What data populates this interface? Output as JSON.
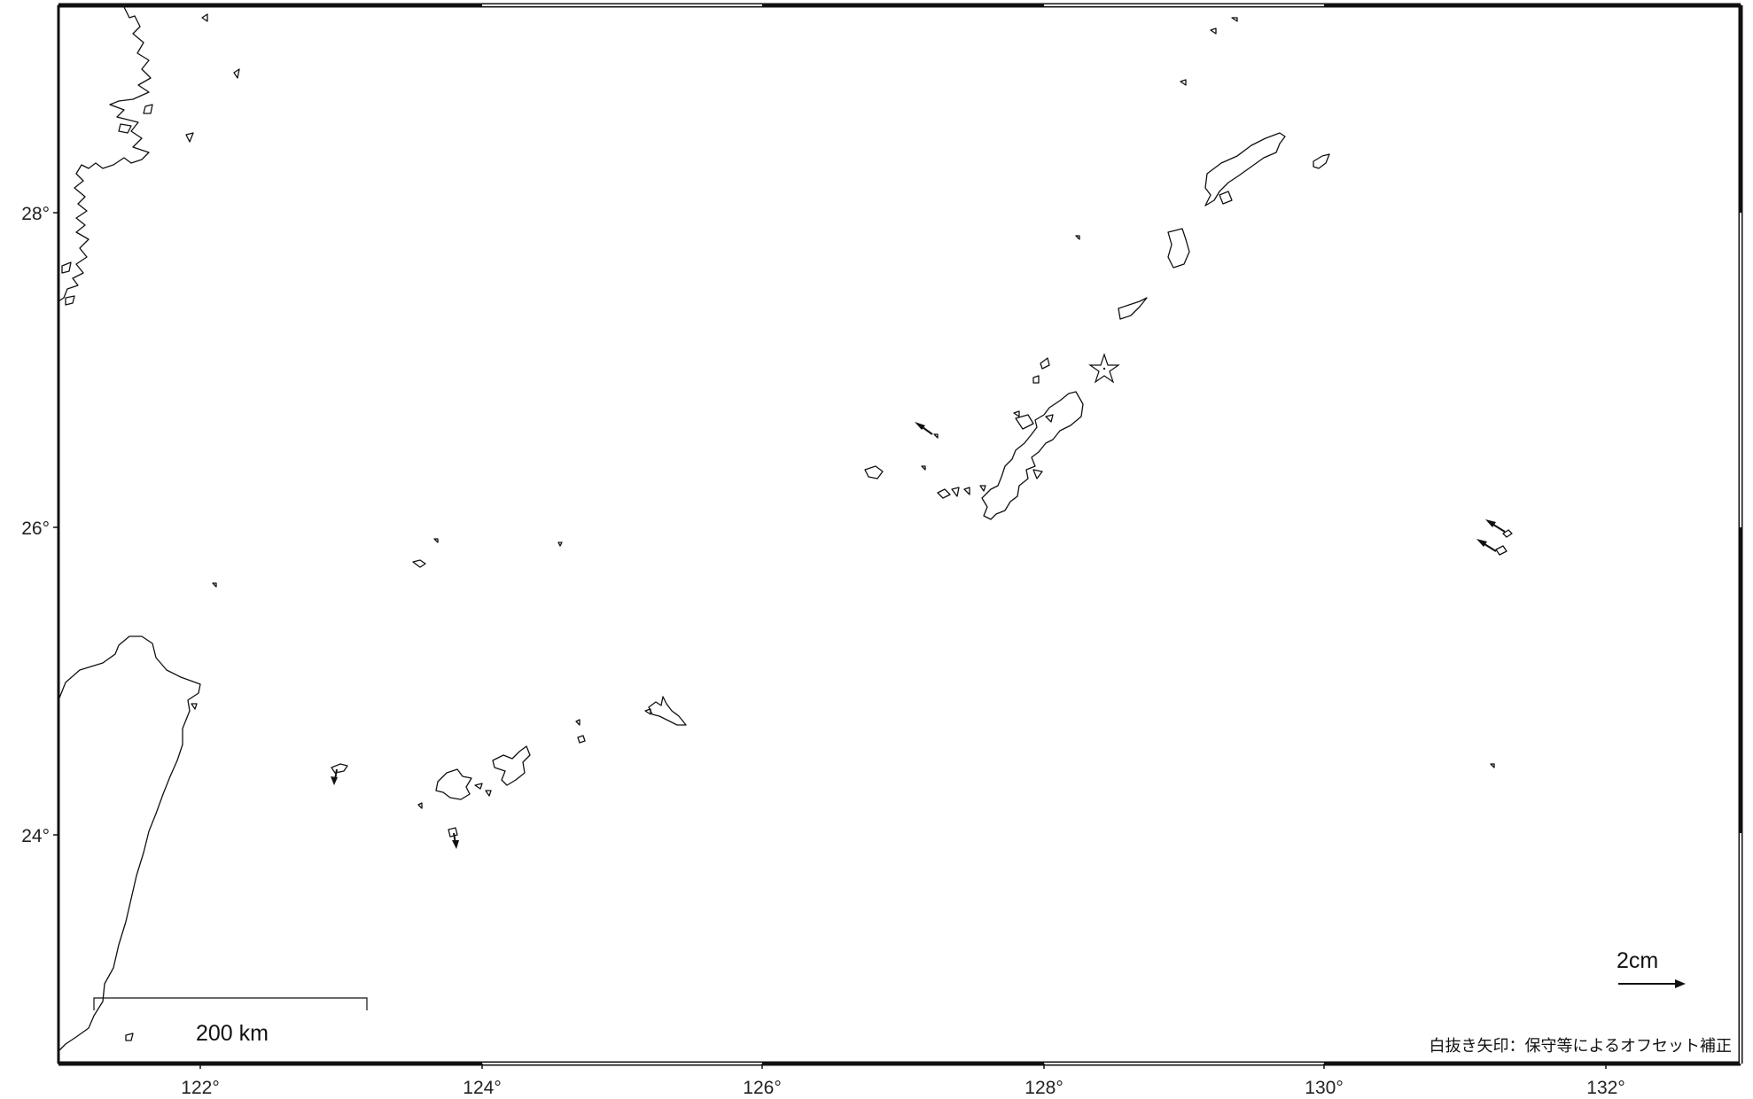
{
  "map": {
    "x_ticks": [
      {
        "lon": 122,
        "label": "122°"
      },
      {
        "lon": 124,
        "label": "124°"
      },
      {
        "lon": 126,
        "label": "126°"
      },
      {
        "lon": 128,
        "label": "128°"
      },
      {
        "lon": 130,
        "label": "130°"
      },
      {
        "lon": 132,
        "label": "132°"
      }
    ],
    "y_ticks": [
      {
        "lat": 28,
        "label": "28°"
      },
      {
        "lat": 26,
        "label": "26°"
      },
      {
        "lat": 24,
        "label": "24°"
      }
    ],
    "scale_bar_label": "200 km",
    "vector_scale_label": "2cm",
    "note": "白抜き矢印：保守等によるオフセット補正",
    "epicenter_marker": "star-icon",
    "vector_style": "arrow-icon",
    "colors": {
      "coast": "#111111",
      "background": "#ffffff",
      "text": "#222222"
    }
  }
}
